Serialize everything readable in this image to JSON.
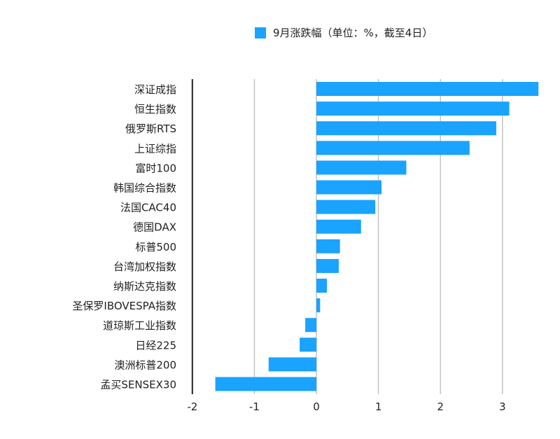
{
  "chart_data": {
    "type": "bar",
    "orientation": "horizontal",
    "title": "",
    "legend": {
      "label": "9月涨跌幅（单位：%，截至4日）",
      "placement": "top"
    },
    "categories": [
      "深证成指",
      "恒生指数",
      "俄罗斯RTS",
      "上证综指",
      "富时100",
      "韩国综合指数",
      "法国CAC40",
      "德国DAX",
      "标普500",
      "台湾加权指数",
      "纳斯达克指数",
      "圣保罗IBOVESPA指数",
      "道琼斯工业指数",
      "日经225",
      "澳洲标普200",
      "孟买SENSEX30"
    ],
    "series": [
      {
        "name": "9月涨跌幅（单位：%，截至4日）",
        "values": [
          3.58,
          3.11,
          2.9,
          2.47,
          1.45,
          1.05,
          0.95,
          0.72,
          0.38,
          0.36,
          0.17,
          0.06,
          -0.18,
          -0.27,
          -0.77,
          -1.63
        ],
        "color": "#1aa3ff"
      }
    ],
    "xlim": [
      -2,
      3.6
    ],
    "xticks": [
      "-2",
      "-1",
      "0",
      "1",
      "2",
      "3"
    ],
    "xlabel": "",
    "ylabel": "",
    "grid": true
  }
}
